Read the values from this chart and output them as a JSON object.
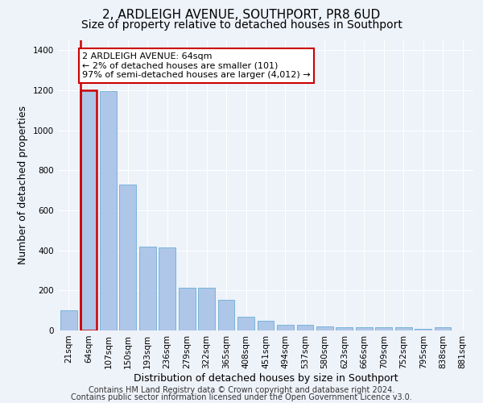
{
  "title": "2, ARDLEIGH AVENUE, SOUTHPORT, PR8 6UD",
  "subtitle": "Size of property relative to detached houses in Southport",
  "xlabel": "Distribution of detached houses by size in Southport",
  "ylabel": "Number of detached properties",
  "categories": [
    "21sqm",
    "64sqm",
    "107sqm",
    "150sqm",
    "193sqm",
    "236sqm",
    "279sqm",
    "322sqm",
    "365sqm",
    "408sqm",
    "451sqm",
    "494sqm",
    "537sqm",
    "580sqm",
    "623sqm",
    "666sqm",
    "709sqm",
    "752sqm",
    "795sqm",
    "838sqm",
    "881sqm"
  ],
  "values": [
    100,
    1200,
    1195,
    730,
    420,
    415,
    215,
    215,
    155,
    70,
    50,
    30,
    30,
    20,
    15,
    15,
    15,
    15,
    10,
    15,
    0
  ],
  "bar_color": "#aec6e8",
  "bar_edge_color": "#6aaed6",
  "highlight_bar_index": 1,
  "highlight_edge_color": "#cc0000",
  "ylim": [
    0,
    1450
  ],
  "yticks": [
    0,
    200,
    400,
    600,
    800,
    1000,
    1200,
    1400
  ],
  "annotation_title": "2 ARDLEIGH AVENUE: 64sqm",
  "annotation_line1": "← 2% of detached houses are smaller (101)",
  "annotation_line2": "97% of semi-detached houses are larger (4,012) →",
  "annotation_box_color": "#ffffff",
  "annotation_box_edge": "#cc0000",
  "footer1": "Contains HM Land Registry data © Crown copyright and database right 2024.",
  "footer2": "Contains public sector information licensed under the Open Government Licence v3.0.",
  "background_color": "#eef2f9",
  "grid_color": "#ffffff",
  "title_fontsize": 11,
  "subtitle_fontsize": 10,
  "axis_label_fontsize": 9,
  "tick_fontsize": 7.5,
  "annotation_fontsize": 8,
  "footer_fontsize": 7
}
